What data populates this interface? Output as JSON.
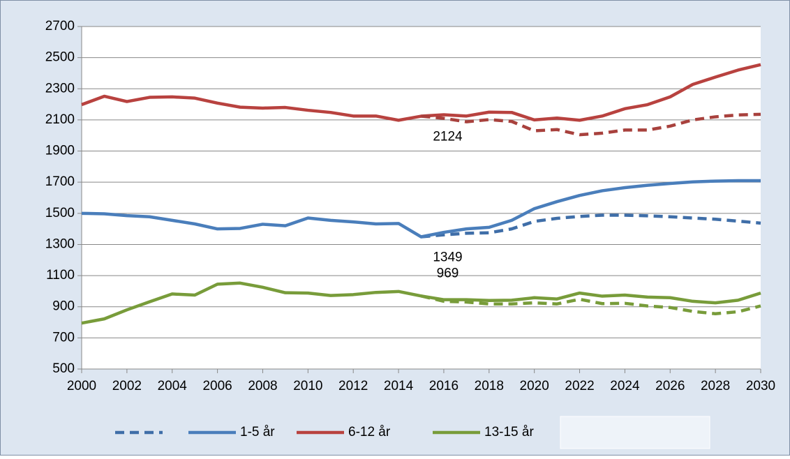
{
  "chart_data": {
    "type": "line",
    "x": [
      2000,
      2001,
      2002,
      2003,
      2004,
      2005,
      2006,
      2007,
      2008,
      2009,
      2010,
      2011,
      2012,
      2013,
      2014,
      2015,
      2016,
      2017,
      2018,
      2019,
      2020,
      2021,
      2022,
      2023,
      2024,
      2025,
      2026,
      2027,
      2028,
      2029,
      2030
    ],
    "series": [
      {
        "color": "#3f6ea8",
        "dashed": true,
        "values": [
          null,
          null,
          null,
          null,
          null,
          null,
          null,
          null,
          null,
          null,
          null,
          null,
          null,
          null,
          null,
          1349,
          1362,
          1372,
          1375,
          1400,
          1448,
          1468,
          1480,
          1488,
          1488,
          1484,
          1478,
          1470,
          1462,
          1450,
          1437
        ]
      },
      {
        "name": "1-5 år",
        "color": "#4a7ebb",
        "values": [
          1500,
          1497,
          1485,
          1478,
          1455,
          1432,
          1400,
          1403,
          1430,
          1420,
          1470,
          1455,
          1445,
          1432,
          1435,
          1349,
          1378,
          1400,
          1410,
          1455,
          1530,
          1575,
          1615,
          1645,
          1665,
          1680,
          1692,
          1702,
          1707,
          1710,
          1710
        ],
        "value_labels": [
          null,
          null,
          null,
          null,
          null,
          null,
          null,
          null,
          null,
          null,
          null,
          null,
          null,
          null,
          null,
          "1349",
          null,
          null,
          null,
          null,
          null,
          null,
          null,
          null,
          null,
          null,
          null,
          null,
          null,
          null,
          null
        ]
      },
      {
        "name": "6-12 år",
        "color": "#b8423f",
        "values": [
          2198,
          2252,
          2218,
          2245,
          2248,
          2240,
          2208,
          2182,
          2176,
          2180,
          2162,
          2148,
          2125,
          2125,
          2098,
          2124,
          2133,
          2125,
          2150,
          2148,
          2100,
          2112,
          2098,
          2125,
          2172,
          2198,
          2248,
          2328,
          2375,
          2420,
          2455
        ],
        "value_labels": [
          null,
          null,
          null,
          null,
          null,
          null,
          null,
          null,
          null,
          null,
          null,
          null,
          null,
          null,
          null,
          "2124",
          null,
          null,
          null,
          null,
          null,
          null,
          null,
          null,
          null,
          null,
          null,
          null,
          null,
          null,
          null
        ]
      },
      {
        "name": "13-15 år",
        "color": "#789c3a",
        "values": [
          795,
          822,
          880,
          932,
          982,
          975,
          1045,
          1052,
          1025,
          990,
          988,
          972,
          978,
          992,
          998,
          969,
          945,
          945,
          940,
          942,
          958,
          950,
          988,
          968,
          975,
          962,
          958,
          935,
          925,
          942,
          988
        ],
        "value_labels": [
          null,
          null,
          null,
          null,
          null,
          null,
          null,
          null,
          null,
          null,
          null,
          null,
          null,
          null,
          null,
          "969",
          null,
          null,
          null,
          null,
          null,
          null,
          null,
          null,
          null,
          null,
          null,
          null,
          null,
          null,
          null
        ]
      },
      {
        "color": "#a8413d",
        "dashed": true,
        "legend": false,
        "values": [
          null,
          null,
          null,
          null,
          null,
          null,
          null,
          null,
          null,
          null,
          null,
          null,
          null,
          null,
          null,
          2124,
          2110,
          2088,
          2102,
          2090,
          2030,
          2038,
          2005,
          2015,
          2035,
          2035,
          2060,
          2100,
          2120,
          2132,
          2136
        ]
      },
      {
        "color": "#789c3a",
        "dashed": true,
        "legend": false,
        "values": [
          null,
          null,
          null,
          null,
          null,
          null,
          null,
          null,
          null,
          null,
          null,
          null,
          null,
          null,
          null,
          969,
          935,
          930,
          918,
          918,
          925,
          918,
          948,
          920,
          922,
          905,
          895,
          870,
          855,
          868,
          905
        ]
      }
    ],
    "xlim": [
      2000,
      2030
    ],
    "xticks": [
      2000,
      2002,
      2004,
      2006,
      2008,
      2010,
      2012,
      2014,
      2016,
      2018,
      2020,
      2022,
      2024,
      2026,
      2028,
      2030
    ],
    "ylim": [
      500,
      2700
    ],
    "yticks": [
      500,
      700,
      900,
      1100,
      1300,
      1500,
      1700,
      1900,
      2100,
      2300,
      2500,
      2700
    ],
    "grid": true
  }
}
